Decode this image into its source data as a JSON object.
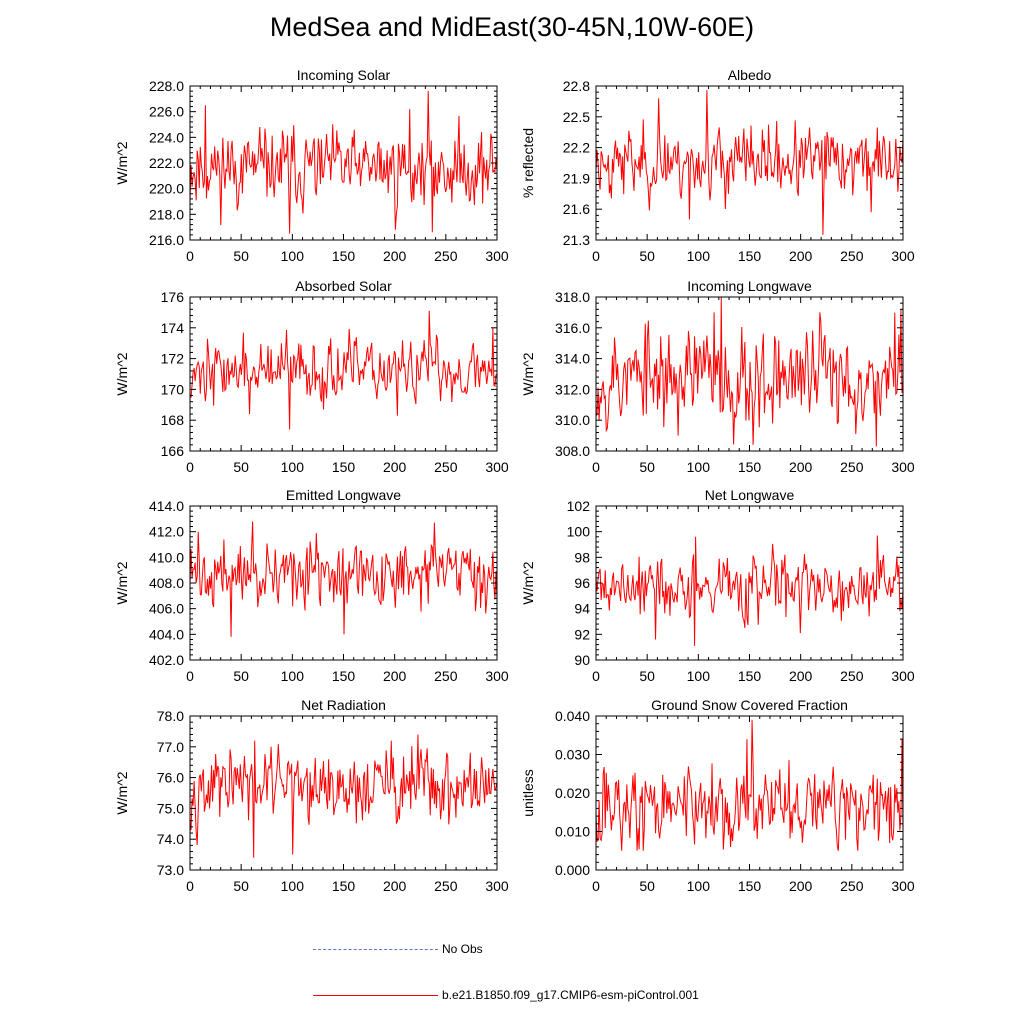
{
  "title": "MedSea and MidEast(30-45N,10W-60E)",
  "colors": {
    "series": "#ff0000",
    "obs": "#5a78c8"
  },
  "legend": {
    "obs_label": "No Obs",
    "model_label": "b.e21.B1850.f09_g17.CMIP6-esm-piControl.001"
  },
  "chart_data": [
    {
      "type": "line",
      "title": "Incoming Solar",
      "ylabel": "W/m^2",
      "xlim": [
        0,
        300
      ],
      "ylim": [
        216,
        228
      ],
      "xticks": [
        0,
        50,
        100,
        150,
        200,
        250,
        300
      ],
      "yticks": [
        "216.0",
        "218.0",
        "220.0",
        "222.0",
        "224.0",
        "226.0",
        "228.0"
      ],
      "series": [
        {
          "name": "b.e21.B1850.f09_g17.CMIP6-esm-piControl.001",
          "seed": 11,
          "mean": 221.6,
          "spread": 1.5,
          "min": 216.5,
          "max": 227.6,
          "spikes": [
            [
              232,
              227.6
            ],
            [
              97,
              216.5
            ],
            [
              236,
              216.6
            ],
            [
              200,
              216.8
            ],
            [
              15,
              226.5
            ],
            [
              214,
              226.2
            ]
          ]
        }
      ]
    },
    {
      "type": "line",
      "title": "Albedo",
      "ylabel": "% reflected",
      "xlim": [
        0,
        300
      ],
      "ylim": [
        21.3,
        22.8
      ],
      "xticks": [
        0,
        50,
        100,
        150,
        200,
        250,
        300
      ],
      "yticks": [
        "21.3",
        "21.6",
        "21.9",
        "22.2",
        "22.5",
        "22.8"
      ],
      "series": [
        {
          "name": "b.e21.B1850.f09_g17.CMIP6-esm-piControl.001",
          "seed": 23,
          "mean": 22.06,
          "spread": 0.17,
          "min": 21.35,
          "max": 22.76,
          "spikes": [
            [
              108,
              22.76
            ],
            [
              61,
              22.68
            ],
            [
              221,
              21.35
            ],
            [
              91,
              21.5
            ],
            [
              268,
              21.57
            ]
          ]
        }
      ]
    },
    {
      "type": "line",
      "title": "Absorbed Solar",
      "ylabel": "W/m^2",
      "xlim": [
        0,
        300
      ],
      "ylim": [
        166,
        176
      ],
      "xticks": [
        0,
        50,
        100,
        150,
        200,
        250,
        300
      ],
      "yticks": [
        "166",
        "168",
        "170",
        "172",
        "174",
        "176"
      ],
      "series": [
        {
          "name": "b.e21.B1850.f09_g17.CMIP6-esm-piControl.001",
          "seed": 37,
          "mean": 171.2,
          "spread": 1.0,
          "min": 167.4,
          "max": 175.1,
          "spikes": [
            [
              233,
              175.1
            ],
            [
              97,
              167.4
            ],
            [
              202,
              168.3
            ],
            [
              58,
              168.4
            ],
            [
              295,
              174.0
            ]
          ]
        }
      ]
    },
    {
      "type": "line",
      "title": "Incoming Longwave",
      "ylabel": "W/m^2",
      "xlim": [
        0,
        300
      ],
      "ylim": [
        308,
        318
      ],
      "xticks": [
        0,
        50,
        100,
        150,
        200,
        250,
        300
      ],
      "yticks": [
        "308.0",
        "310.0",
        "312.0",
        "314.0",
        "316.0",
        "318.0"
      ],
      "series": [
        {
          "name": "b.e21.B1850.f09_g17.CMIP6-esm-piControl.001",
          "seed": 53,
          "mean": 312.8,
          "spread": 1.7,
          "min": 308.3,
          "max": 318.0,
          "spikes": [
            [
              122,
              318.0
            ],
            [
              153,
              308.4
            ],
            [
              273,
              308.3
            ],
            [
              115,
              317.0
            ],
            [
              218,
              317.0
            ],
            [
              297,
              317.2
            ]
          ]
        }
      ]
    },
    {
      "type": "line",
      "title": "Emitted Longwave",
      "ylabel": "W/m^2",
      "xlim": [
        0,
        300
      ],
      "ylim": [
        402,
        414
      ],
      "xticks": [
        0,
        50,
        100,
        150,
        200,
        250,
        300
      ],
      "yticks": [
        "402.0",
        "404.0",
        "406.0",
        "408.0",
        "410.0",
        "412.0",
        "414.0"
      ],
      "series": [
        {
          "name": "b.e21.B1850.f09_g17.CMIP6-esm-piControl.001",
          "seed": 71,
          "mean": 408.6,
          "spread": 1.3,
          "min": 403.8,
          "max": 412.8,
          "spikes": [
            [
              40,
              403.8
            ],
            [
              150,
              404.0
            ],
            [
              61,
              412.8
            ],
            [
              238,
              412.7
            ],
            [
              8,
              412.0
            ]
          ]
        }
      ]
    },
    {
      "type": "line",
      "title": "Net Longwave",
      "ylabel": "W/m^2",
      "xlim": [
        0,
        300
      ],
      "ylim": [
        90,
        102
      ],
      "xticks": [
        0,
        50,
        100,
        150,
        200,
        250,
        300
      ],
      "yticks": [
        "90",
        "92",
        "94",
        "96",
        "98",
        "100",
        "102"
      ],
      "series": [
        {
          "name": "b.e21.B1850.f09_g17.CMIP6-esm-piControl.001",
          "seed": 89,
          "mean": 95.7,
          "spread": 1.3,
          "min": 91.1,
          "max": 99.7,
          "spikes": [
            [
              96,
              91.1
            ],
            [
              58,
              91.6
            ],
            [
              97,
              99.6
            ],
            [
              274,
              99.7
            ],
            [
              199,
              92.1
            ]
          ]
        }
      ]
    },
    {
      "type": "line",
      "title": "Net Radiation",
      "ylabel": "W/m^2",
      "xlim": [
        0,
        300
      ],
      "ylim": [
        73,
        78
      ],
      "xticks": [
        0,
        50,
        100,
        150,
        200,
        250,
        300
      ],
      "yticks": [
        "73.0",
        "74.0",
        "75.0",
        "76.0",
        "77.0",
        "78.0"
      ],
      "series": [
        {
          "name": "b.e21.B1850.f09_g17.CMIP6-esm-piControl.001",
          "seed": 97,
          "mean": 75.7,
          "spread": 0.6,
          "min": 73.4,
          "max": 77.4,
          "spikes": [
            [
              62,
              73.4
            ],
            [
              100,
              73.5
            ],
            [
              222,
              77.4
            ],
            [
              196,
              77.2
            ],
            [
              79,
              77.0
            ]
          ]
        }
      ]
    },
    {
      "type": "line",
      "title": "Ground Snow Covered Fraction",
      "ylabel": "unitless",
      "xlim": [
        0,
        300
      ],
      "ylim": [
        0,
        0.04
      ],
      "xticks": [
        0,
        50,
        100,
        150,
        200,
        250,
        300
      ],
      "yticks": [
        "0.000",
        "0.010",
        "0.020",
        "0.030",
        "0.040"
      ],
      "series": [
        {
          "name": "b.e21.B1850.f09_g17.CMIP6-esm-piControl.001",
          "seed": 113,
          "mean": 0.0165,
          "spread": 0.0055,
          "min": 0.005,
          "max": 0.039,
          "spikes": [
            [
              152,
              0.039
            ],
            [
              147,
              0.034
            ],
            [
              298,
              0.034
            ],
            [
              46,
              0.005
            ],
            [
              286,
              0.007
            ]
          ]
        }
      ]
    }
  ]
}
